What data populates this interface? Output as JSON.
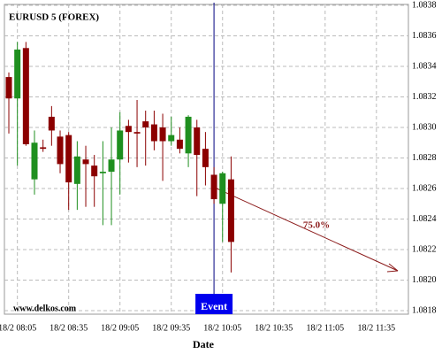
{
  "chart_data": {
    "type": "candlestick",
    "title": "EURUSD 5 (FOREX)",
    "x_label": "Date",
    "watermark": "www.delkos.com",
    "categories": [
      null,
      "18/2 08:05",
      null,
      null,
      null,
      null,
      null,
      "18/2 08:35",
      null,
      null,
      null,
      null,
      null,
      "18/2 09:05",
      null,
      null,
      null,
      null,
      null,
      "18/2 09:35",
      null,
      null,
      null,
      null,
      null,
      "18/2 10:05",
      null,
      null,
      null,
      null,
      null,
      "18/2 10:35",
      null,
      null,
      null,
      null,
      null,
      "18/2 11:05",
      null,
      null,
      null,
      null,
      null,
      "18/2 11:35",
      null,
      null,
      null,
      null
    ],
    "open": [
      1.08333,
      1.08319,
      1.08352,
      1.08266,
      1.08287,
      1.08307,
      1.08294,
      1.08295,
      1.08263,
      1.08279,
      1.08275,
      1.0827,
      1.08271,
      1.08279,
      1.08301,
      1.08297,
      1.08304,
      1.08302,
      1.083,
      1.08291,
      1.08292,
      1.08283,
      1.083,
      1.08286,
      1.08269,
      1.0825,
      1.08266,
      null,
      null,
      null,
      null,
      null,
      null,
      null,
      null,
      null,
      null,
      null,
      null,
      null,
      null,
      null,
      null,
      null,
      null,
      null,
      null,
      null
    ],
    "high": [
      1.08336,
      1.08356,
      1.08356,
      1.08298,
      1.08292,
      1.08314,
      1.08298,
      1.08297,
      1.08291,
      1.08288,
      1.08282,
      1.08291,
      1.083,
      1.0831,
      1.08305,
      1.08318,
      1.08311,
      1.08311,
      1.08309,
      1.08307,
      1.083,
      1.08308,
      1.08305,
      1.08297,
      1.08274,
      1.08271,
      1.08281,
      null,
      null,
      null,
      null,
      null,
      null,
      null,
      null,
      null,
      null,
      null,
      null,
      null,
      null,
      null,
      null,
      null,
      null,
      null,
      null,
      null
    ],
    "low": [
      1.08296,
      1.08275,
      1.08288,
      1.08256,
      1.08284,
      1.08288,
      1.0827,
      1.08246,
      1.08246,
      1.08248,
      1.08248,
      1.08236,
      1.08236,
      1.08256,
      1.08277,
      1.08274,
      1.08275,
      1.08285,
      1.08265,
      1.08288,
      1.08283,
      1.08274,
      1.08255,
      1.08262,
      1.0825,
      1.08225,
      1.08205,
      null,
      null,
      null,
      null,
      null,
      null,
      null,
      null,
      null,
      null,
      null,
      null,
      null,
      null,
      null,
      null,
      null,
      null,
      null,
      null,
      null
    ],
    "close": [
      1.08319,
      1.08351,
      1.08289,
      1.0829,
      1.08286,
      1.08298,
      1.08276,
      1.08264,
      1.08281,
      1.08276,
      1.08268,
      1.08271,
      1.08279,
      1.08298,
      1.08297,
      1.08296,
      1.083,
      1.08291,
      1.08291,
      1.08295,
      1.08286,
      1.08307,
      1.08282,
      1.08274,
      1.08253,
      1.0827,
      1.08225,
      null,
      null,
      null,
      null,
      null,
      null,
      null,
      null,
      null,
      null,
      null,
      null,
      null,
      null,
      null,
      null,
      null,
      null,
      null,
      null,
      null
    ],
    "up_color": "#1f8f1f",
    "down_color": "#8b0000",
    "ylim": [
      1.0818,
      1.0838
    ],
    "yticks": [
      1.0838,
      1.0836,
      1.0834,
      1.0832,
      {
        "value": 1.083,
        "label": "1.0830"
      },
      1.0828,
      1.0826,
      1.0824,
      1.0822,
      {
        "value": 1.082,
        "label": "1.0820"
      },
      1.0818
    ],
    "grid": true,
    "event": {
      "label": "Event",
      "category_index": 24,
      "color": "#0000ee"
    },
    "forecast": {
      "label": "75.0%",
      "color": "#8b1a1a"
    }
  }
}
